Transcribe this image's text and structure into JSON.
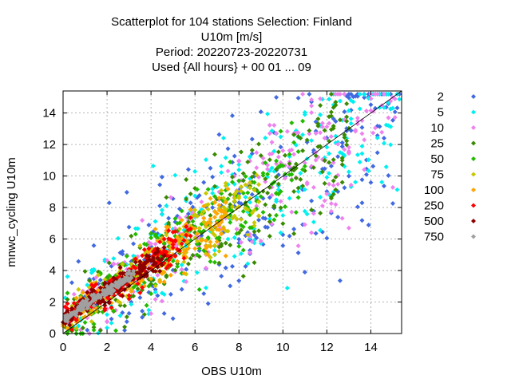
{
  "chart_data": {
    "type": "scatter",
    "title_lines": [
      "Scatterplot for  104 stations Selection: Finland",
      "U10m [m/s]",
      "Period: 20220723-20220731",
      "Used {All hours} + 00 01 ... 09"
    ],
    "xlabel": "OBS U10m",
    "ylabel": "mnwc_cycling U10m",
    "xlim": [
      0,
      15.4
    ],
    "ylim": [
      0,
      15.4
    ],
    "xticks": [
      0,
      2,
      4,
      6,
      8,
      10,
      12,
      14
    ],
    "yticks": [
      0,
      2,
      4,
      6,
      8,
      10,
      12,
      14
    ],
    "grid": true,
    "diagonal_reference_line": true,
    "legend_placement": "right",
    "marker": "diamond",
    "series": [
      {
        "name": "2",
        "color": "#4169e1",
        "spread": 2.6,
        "xmax": 15.4,
        "extra": 0.6
      },
      {
        "name": "5",
        "color": "#00f0f0",
        "spread": 2.3,
        "xmax": 15.4,
        "extra": 0.4
      },
      {
        "name": "10",
        "color": "#ee82ee",
        "spread": 2.0,
        "xmax": 15.2,
        "extra": 0.2
      },
      {
        "name": "25",
        "color": "#3a8a00",
        "spread": 1.7,
        "xmax": 13.0,
        "extra": 0
      },
      {
        "name": "50",
        "color": "#22bb00",
        "spread": 1.45,
        "xmax": 11.0,
        "extra": 0
      },
      {
        "name": "75",
        "color": "#c8c800",
        "spread": 1.15,
        "xmax": 9.0,
        "extra": 0
      },
      {
        "name": "100",
        "color": "#ffa500",
        "spread": 0.95,
        "xmax": 7.5,
        "extra": 0
      },
      {
        "name": "250",
        "color": "#ff0000",
        "spread": 0.8,
        "xmax": 5.8,
        "extra": 0
      },
      {
        "name": "500",
        "color": "#8b0000",
        "spread": 0.55,
        "xmax": 4.6,
        "extra": 0
      },
      {
        "name": "750",
        "color": "#a0a0a0",
        "spread": 0.25,
        "xmax": 3.2,
        "extra": 0
      }
    ]
  }
}
